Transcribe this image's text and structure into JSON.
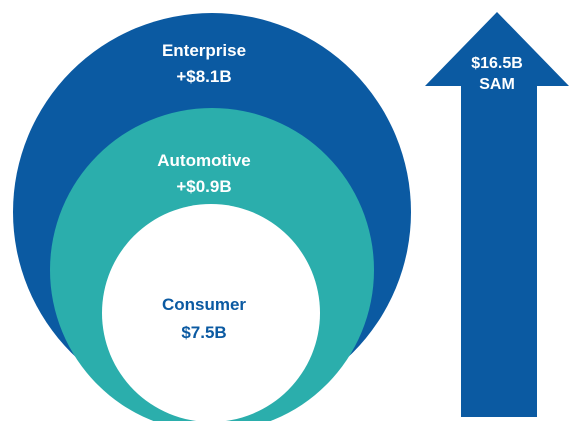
{
  "segments": [
    {
      "name": "Enterprise",
      "value": "+$8.1B",
      "color": "#0b5aa2",
      "text_color": "#ffffff"
    },
    {
      "name": "Automotive",
      "value": "+$0.9B",
      "color": "#2baeac",
      "text_color": "#ffffff"
    },
    {
      "name": "Consumer",
      "value": "$7.5B",
      "color": "#ffffff",
      "text_color": "#0b5aa2"
    }
  ],
  "total": {
    "value": "$16.5B",
    "label": "SAM",
    "color": "#0b5aa2",
    "text_color": "#ffffff"
  }
}
